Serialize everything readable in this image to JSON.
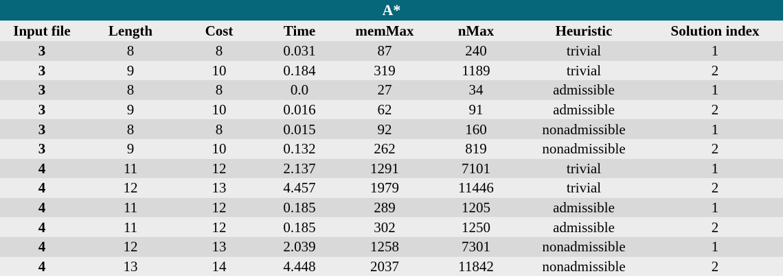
{
  "title": "A*",
  "columns": [
    "Input file",
    "Length",
    "Cost",
    "Time",
    "memMax",
    "nMax",
    "Heuristic",
    "Solution index"
  ],
  "rows": [
    [
      "3",
      "8",
      "8",
      "0.031",
      "87",
      "240",
      "trivial",
      "1"
    ],
    [
      "3",
      "9",
      "10",
      "0.184",
      "319",
      "1189",
      "trivial",
      "2"
    ],
    [
      "3",
      "8",
      "8",
      "0.0",
      "27",
      "34",
      "admissible",
      "1"
    ],
    [
      "3",
      "9",
      "10",
      "0.016",
      "62",
      "91",
      "admissible",
      "2"
    ],
    [
      "3",
      "8",
      "8",
      "0.015",
      "92",
      "160",
      "nonadmissible",
      "1"
    ],
    [
      "3",
      "9",
      "10",
      "0.132",
      "262",
      "819",
      "nonadmissible",
      "2"
    ],
    [
      "4",
      "11",
      "12",
      "2.137",
      "1291",
      "7101",
      "trivial",
      "1"
    ],
    [
      "4",
      "12",
      "13",
      "4.457",
      "1979",
      "11446",
      "trivial",
      "2"
    ],
    [
      "4",
      "11",
      "12",
      "0.185",
      "289",
      "1205",
      "admissible",
      "1"
    ],
    [
      "4",
      "11",
      "12",
      "0.185",
      "302",
      "1250",
      "admissible",
      "2"
    ],
    [
      "4",
      "12",
      "13",
      "2.039",
      "1258",
      "7301",
      "nonadmissible",
      "1"
    ],
    [
      "4",
      "13",
      "14",
      "4.448",
      "2037",
      "11842",
      "nonadmissible",
      "2"
    ]
  ],
  "colors": {
    "title_bg": "#06667a",
    "row_dark": "#d9d9d9",
    "row_light": "#ececec"
  }
}
